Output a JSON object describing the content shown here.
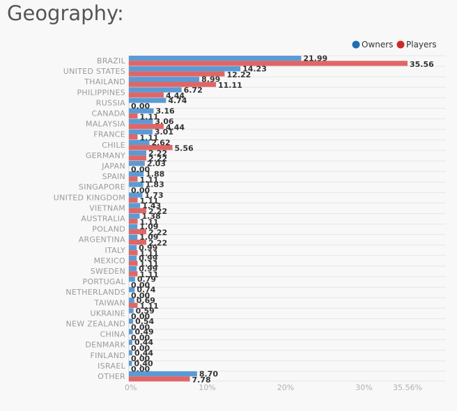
{
  "page": {
    "title": "Geography:"
  },
  "chart_data": {
    "type": "bar",
    "orientation": "horizontal",
    "title": "Geography:",
    "categories": [
      "BRAZIL",
      "UNITED STATES",
      "THAILAND",
      "PHILIPPINES",
      "RUSSIA",
      "CANADA",
      "MALAYSIA",
      "FRANCE",
      "CHILE",
      "GERMANY",
      "JAPAN",
      "SPAIN",
      "SINGAPORE",
      "UNITED KINGDOM",
      "VIETNAM",
      "AUSTRALIA",
      "POLAND",
      "ARGENTINA",
      "ITALY",
      "MEXICO",
      "SWEDEN",
      "PORTUGAL",
      "NETHERLANDS",
      "TAIWAN",
      "UKRAINE",
      "NEW ZEALAND",
      "CHINA",
      "DENMARK",
      "FINLAND",
      "ISRAEL",
      "OTHER"
    ],
    "series": [
      {
        "name": "Owners",
        "color": "#5b9bd5",
        "values": [
          21.99,
          14.23,
          8.99,
          6.72,
          4.74,
          3.16,
          3.06,
          3.01,
          2.62,
          2.22,
          2.03,
          1.88,
          1.83,
          1.73,
          1.43,
          1.38,
          1.09,
          1.09,
          0.99,
          0.99,
          0.99,
          0.79,
          0.74,
          0.69,
          0.59,
          0.54,
          0.49,
          0.44,
          0.44,
          0.4,
          8.7
        ]
      },
      {
        "name": "Players",
        "color": "#e06666",
        "values": [
          35.56,
          12.22,
          11.11,
          4.44,
          0.0,
          1.11,
          4.44,
          1.11,
          5.56,
          2.22,
          0.0,
          1.11,
          0.0,
          1.11,
          2.22,
          1.11,
          2.22,
          2.22,
          1.11,
          1.11,
          1.11,
          0.0,
          0.0,
          1.11,
          0.0,
          0.0,
          0.0,
          0.0,
          0.0,
          0.0,
          7.78
        ]
      }
    ],
    "xlim": [
      0,
      35.56
    ],
    "x_ticks": [
      "0%",
      "10%",
      "20%",
      "30%",
      "35.56%"
    ],
    "x_tick_values": [
      0,
      10,
      20,
      30,
      35.56
    ],
    "grid": true,
    "legend": {
      "placement": "top-right",
      "owners_color": "#1f6fb5",
      "players_color": "#cc2a2a"
    }
  }
}
